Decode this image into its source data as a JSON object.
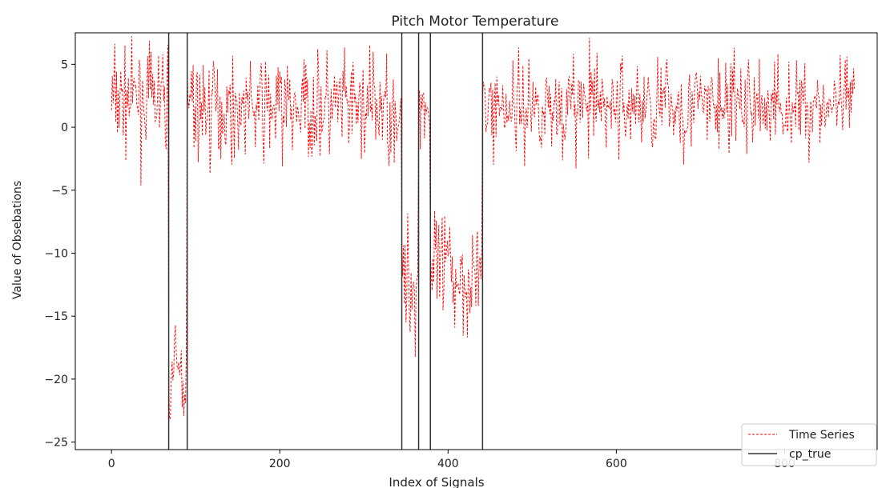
{
  "chart_data": {
    "type": "line",
    "title": "Pitch Motor Temperature",
    "xlabel": "Index of Signals",
    "ylabel": "Value of Obsebations",
    "xlim": [
      -43,
      910
    ],
    "ylim": [
      -25.6,
      7.5
    ],
    "xticks": [
      0,
      200,
      400,
      600,
      800
    ],
    "yticks": [
      5,
      0,
      -5,
      -10,
      -15,
      -20,
      -25
    ],
    "xtick_labels": [
      "0",
      "200",
      "400",
      "600",
      "800"
    ],
    "ytick_labels": [
      "5",
      "0",
      "−5",
      "−10",
      "−15",
      "−20",
      "−25"
    ],
    "grid": false,
    "legend_position": "lower-right",
    "series": [
      {
        "name": "Time Series",
        "color": "#ff0000",
        "style": "dashed",
        "n_points": 884,
        "segments": [
          {
            "start": 0,
            "end": 68,
            "mean": 2.2,
            "std": 1.9
          },
          {
            "start": 68,
            "end": 90,
            "mean": -19.5,
            "std": 2.0
          },
          {
            "start": 90,
            "end": 345,
            "mean": 1.5,
            "std": 2.1
          },
          {
            "start": 345,
            "end": 365,
            "mean": -12.5,
            "std": 2.4
          },
          {
            "start": 365,
            "end": 379,
            "mean": 1.8,
            "std": 1.4
          },
          {
            "start": 379,
            "end": 441,
            "mean": -11.7,
            "std": 2.3
          },
          {
            "start": 441,
            "end": 884,
            "mean": 1.7,
            "std": 1.9
          }
        ]
      },
      {
        "name": "cp_true",
        "color": "#333333",
        "style": "solid",
        "x": [
          68,
          90,
          345,
          365,
          379,
          441
        ]
      }
    ]
  }
}
